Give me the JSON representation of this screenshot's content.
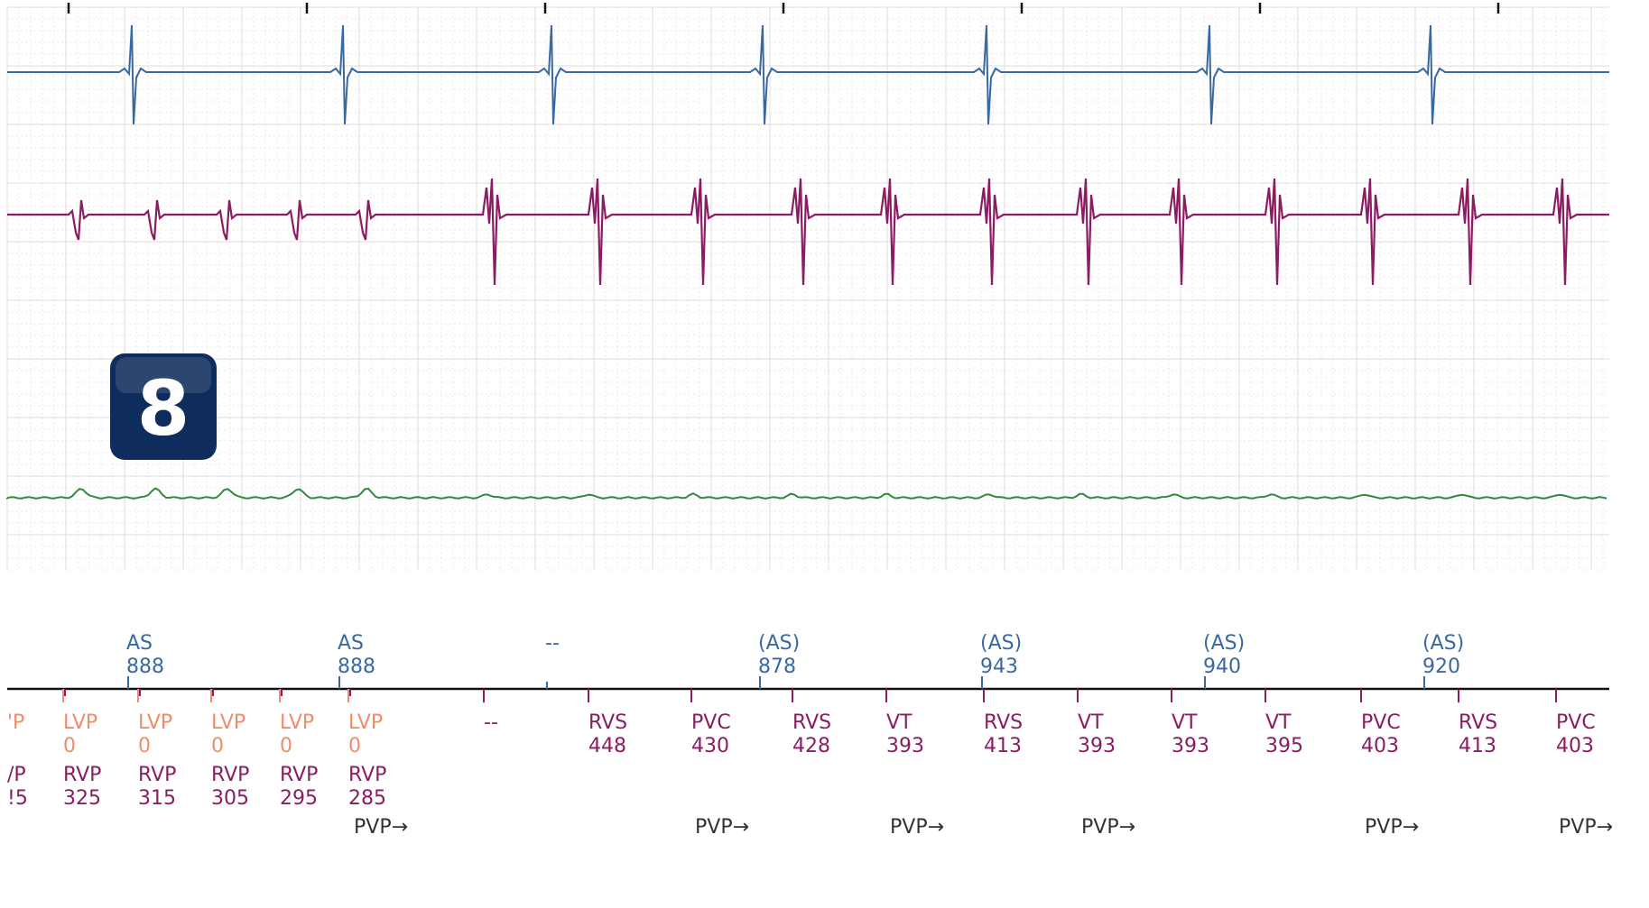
{
  "badge": {
    "label": "8",
    "color": "#0f2d5c"
  },
  "colors": {
    "atrial": "#3a68a0",
    "rv": "#8a1d62",
    "lv": "#ef8c6a",
    "far_field": "#2f8a3c",
    "pvp": "#333333",
    "grid_major": "#dcdcdc",
    "grid_minor": "#e8e8e8"
  },
  "chart_data": {
    "type": "line",
    "description_free": true,
    "channels": [
      {
        "name": "",
        "color": "#3a68a0",
        "events": [
          "spike",
          "spike",
          "spike",
          "spike",
          "spike",
          "spike",
          "spike"
        ]
      },
      {
        "name": "",
        "color": "#8a1d62",
        "events": [
          "small",
          "small",
          "small",
          "small",
          "small",
          "large",
          "large",
          "large",
          "large",
          "large",
          "large",
          "large",
          "large",
          "large",
          "large",
          "large",
          "large"
        ]
      },
      {
        "name": "",
        "color": "#2f8a3c",
        "events": [
          "bump",
          "bump",
          "bump",
          "bump",
          "bump"
        ]
      }
    ],
    "atrial_markers": [
      {
        "label": "AS",
        "value": "888",
        "paren": false
      },
      {
        "label": "AS",
        "value": "888",
        "paren": false
      },
      {
        "label": "--",
        "value": "",
        "paren": false
      },
      {
        "label": "(AS)",
        "value": "878",
        "paren": true
      },
      {
        "label": "(AS)",
        "value": "943",
        "paren": true
      },
      {
        "label": "(AS)",
        "value": "940",
        "paren": true
      },
      {
        "label": "(AS)",
        "value": "920",
        "paren": true
      }
    ],
    "ventricular_markers": [
      {
        "top": "'P",
        "top_val": "",
        "bottom": "/P",
        "bottom_val": "!5",
        "lv": true
      },
      {
        "top": "LVP",
        "top_val": "0",
        "bottom": "RVP",
        "bottom_val": "325",
        "lv": true
      },
      {
        "top": "LVP",
        "top_val": "0",
        "bottom": "RVP",
        "bottom_val": "315",
        "lv": true
      },
      {
        "top": "LVP",
        "top_val": "0",
        "bottom": "RVP",
        "bottom_val": "305",
        "lv": true
      },
      {
        "top": "LVP",
        "top_val": "0",
        "bottom": "RVP",
        "bottom_val": "295",
        "lv": true
      },
      {
        "top": "LVP",
        "top_val": "0",
        "bottom": "RVP",
        "bottom_val": "285",
        "lv": true
      },
      {
        "top": "--",
        "top_val": "",
        "bottom": "",
        "bottom_val": "",
        "lv": false
      },
      {
        "top": "RVS",
        "top_val": "448",
        "bottom": "",
        "bottom_val": "",
        "lv": false
      },
      {
        "top": "PVC",
        "top_val": "430",
        "bottom": "",
        "bottom_val": "",
        "lv": false
      },
      {
        "top": "RVS",
        "top_val": "428",
        "bottom": "",
        "bottom_val": "",
        "lv": false
      },
      {
        "top": "VT",
        "top_val": "393",
        "bottom": "",
        "bottom_val": "",
        "lv": false
      },
      {
        "top": "RVS",
        "top_val": "413",
        "bottom": "",
        "bottom_val": "",
        "lv": false
      },
      {
        "top": "VT",
        "top_val": "393",
        "bottom": "",
        "bottom_val": "",
        "lv": false
      },
      {
        "top": "VT",
        "top_val": "393",
        "bottom": "",
        "bottom_val": "",
        "lv": false
      },
      {
        "top": "VT",
        "top_val": "395",
        "bottom": "",
        "bottom_val": "",
        "lv": false
      },
      {
        "top": "PVC",
        "top_val": "403",
        "bottom": "",
        "bottom_val": "",
        "lv": false
      },
      {
        "top": "RVS",
        "top_val": "413",
        "bottom": "",
        "bottom_val": "",
        "lv": false
      },
      {
        "top": "PVC",
        "top_val": "403",
        "bottom": "",
        "bottom_val": "",
        "lv": false
      }
    ],
    "pvp_markers": [
      "PVP→",
      "PVP→",
      "PVP→",
      "PVP→",
      "PVP→",
      "PVP→"
    ]
  }
}
